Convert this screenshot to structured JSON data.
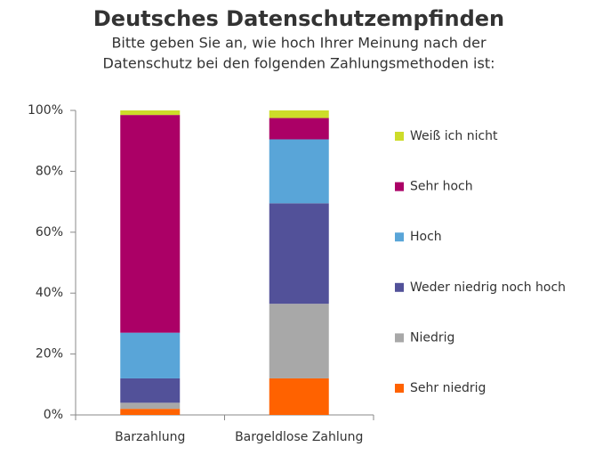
{
  "chart_data": {
    "type": "stacked_bar",
    "title": "Deutsches Datenschutzempfinden",
    "subtitle": [
      "Bitte geben Sie an, wie hoch Ihrer Meinung nach der",
      "Datenschutz bei den folgenden Zahlungsmethoden ist:"
    ],
    "categories": [
      "Barzahlung",
      "Bargeldlose Zahlung"
    ],
    "series": [
      {
        "name": "Sehr niedrig",
        "color": "#ff6200",
        "values": [
          2,
          12
        ]
      },
      {
        "name": "Niedrig",
        "color": "#a8a8a8",
        "values": [
          2,
          24.5
        ]
      },
      {
        "name": "Weder niedrig noch hoch",
        "color": "#525199",
        "values": [
          8,
          33
        ]
      },
      {
        "name": "Hoch",
        "color": "#59a5d8",
        "values": [
          15,
          21
        ]
      },
      {
        "name": "Sehr hoch",
        "color": "#ab0066",
        "values": [
          71.5,
          7
        ]
      },
      {
        "name": "Weiß ich nicht",
        "color": "#cddc29",
        "values": [
          1.5,
          2.5
        ]
      }
    ],
    "ylim": [
      0,
      100
    ],
    "yticks": [
      {
        "value": 0,
        "label": "0%"
      },
      {
        "value": 20,
        "label": "20%"
      },
      {
        "value": 40,
        "label": "40%"
      },
      {
        "value": 60,
        "label": "60%"
      },
      {
        "value": 80,
        "label": "80%"
      },
      {
        "value": 100,
        "label": "100%"
      }
    ],
    "legend": "right"
  }
}
